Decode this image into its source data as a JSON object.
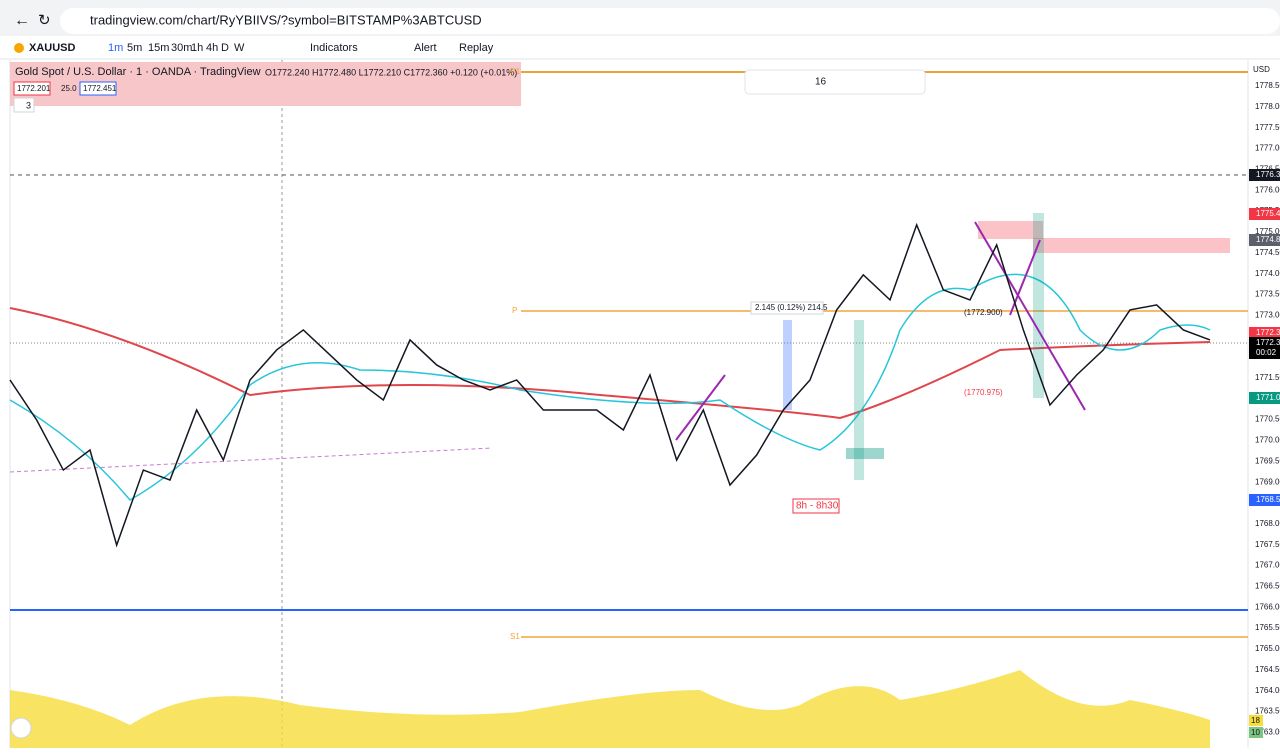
{
  "browser": {
    "url": "tradingview.com/chart/RyYBIIVS/?symbol=BITSTAMP%3ABTCUSD"
  },
  "toolbar": {
    "symbol": "XAUUSD",
    "intervals": [
      "1m",
      "5m",
      "15m",
      "30m",
      "1h",
      "4h",
      "D",
      "W"
    ],
    "indicators": "Indicators",
    "alert": "Alert",
    "replay": "Replay"
  },
  "drawing_toolbar": {
    "font_size": "16"
  },
  "legend": {
    "title": "Gold Spot / U.S. Dollar · 1 · OANDA · TradingView",
    "ohlc": "O1772.240 H1772.480 L1772.210 C1772.360 +0.120 (+0.01%)",
    "inputs": [
      "1772.201",
      "25.0",
      "1772.451"
    ],
    "collapsed_count": "3"
  },
  "levels": {
    "r1": "R1",
    "p": "P",
    "s1": "S1"
  },
  "annotations": {
    "measure": "2.145 (0.12%) 214.5",
    "level_high": "(1772.900)",
    "level_low": "(1770.975)",
    "session": "8h - 8h30"
  },
  "price_axis": {
    "currency": "USD",
    "ticks": [
      "1778.50",
      "1778.00",
      "1777.50",
      "1777.00",
      "1776.50",
      "1776.00",
      "1775.50",
      "1775.00",
      "1774.50",
      "1774.00",
      "1773.50",
      "1773.00",
      "1772.50",
      "1772.00",
      "1771.50",
      "1771.00",
      "1770.50",
      "1770.00",
      "1769.50",
      "1769.00",
      "1768.50",
      "1768.00",
      "1767.50",
      "1767.00",
      "1766.50",
      "1766.00",
      "1765.50",
      "1765.00",
      "1764.50",
      "1764.00",
      "1763.50",
      "1763.00"
    ],
    "badges": [
      {
        "label": "1776.35",
        "color": "#131722"
      },
      {
        "label": "1775.43",
        "color": "#f23645"
      },
      {
        "label": "1774.80",
        "color": "#5d606b"
      },
      {
        "label": "1772.34",
        "color": "#f23645"
      },
      {
        "label": "1772.33",
        "color": "#000000",
        "sub": "00:02"
      },
      {
        "label": "1771.03",
        "color": "#089981"
      },
      {
        "label": "1768.56",
        "color": "#2962ff"
      }
    ]
  },
  "volume_badges": [
    "18",
    "10"
  ],
  "price_line": [
    1771.43,
    1770.47,
    1769.27,
    1769.75,
    1767.47,
    1769.27,
    1769.03,
    1770.71,
    1769.51,
    1771.43,
    1772.15,
    1772.63,
    1772.03,
    1771.43,
    1770.95,
    1772.39,
    1771.79,
    1771.43,
    1771.19,
    1771.43,
    1770.71,
    1770.71,
    1770.71,
    1770.23,
    1771.55,
    1769.51,
    1770.71,
    1768.91,
    1769.63,
    1770.71,
    1771.43,
    1773.11,
    1773.95,
    1773.35,
    1775.15,
    1773.59,
    1773.35,
    1774.67,
    1772.63,
    1770.83,
    1771.55,
    1772.15,
    1773.11,
    1773.23,
    1772.63,
    1772.39
  ]
}
